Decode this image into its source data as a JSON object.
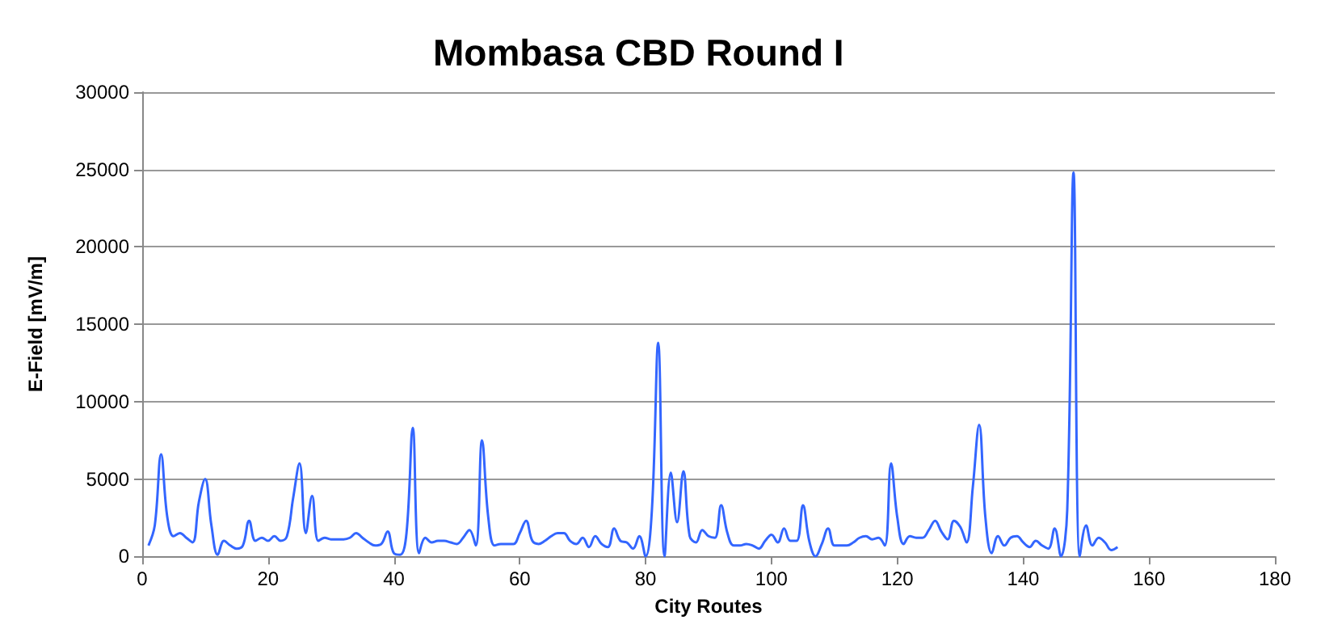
{
  "chart_data": {
    "type": "line",
    "title": "Mombasa CBD Round I",
    "xlabel": "City Routes",
    "ylabel": "E-Field [mV/m]",
    "x": [
      1,
      2,
      3,
      4,
      5,
      6,
      7,
      8,
      9,
      10,
      11,
      12,
      13,
      14,
      15,
      16,
      17,
      18,
      19,
      20,
      21,
      22,
      23,
      24,
      25,
      26,
      27,
      28,
      29,
      30,
      31,
      32,
      33,
      34,
      35,
      36,
      37,
      38,
      39,
      40,
      41,
      42,
      43,
      44,
      45,
      46,
      47,
      48,
      49,
      50,
      51,
      52,
      53,
      54,
      55,
      56,
      57,
      58,
      59,
      60,
      61,
      62,
      63,
      64,
      65,
      66,
      67,
      68,
      69,
      70,
      71,
      72,
      73,
      74,
      75,
      76,
      77,
      78,
      79,
      80,
      81,
      82,
      83,
      84,
      85,
      86,
      87,
      88,
      89,
      90,
      91,
      92,
      93,
      94,
      95,
      96,
      97,
      98,
      99,
      100,
      101,
      102,
      103,
      104,
      105,
      106,
      107,
      108,
      109,
      110,
      111,
      112,
      113,
      114,
      115,
      116,
      117,
      118,
      119,
      120,
      121,
      122,
      123,
      124,
      125,
      126,
      127,
      128,
      129,
      130,
      131,
      132,
      133,
      134,
      135,
      136,
      137,
      138,
      139,
      140,
      141,
      142,
      143,
      144,
      145,
      146,
      147,
      148,
      149,
      150,
      151,
      152,
      153,
      154,
      155
    ],
    "series": [
      {
        "color": "#3366ff",
        "values": [
          700,
          2000,
          6600,
          2500,
          1300,
          1500,
          1200,
          900,
          3500,
          5000,
          2000,
          100,
          1000,
          700,
          500,
          700,
          2300,
          1000,
          1200,
          1000,
          1300,
          1000,
          1300,
          3800,
          6000,
          1500,
          3900,
          1000,
          1200,
          1100,
          1100,
          1100,
          1200,
          1500,
          1200,
          900,
          700,
          800,
          1600,
          200,
          100,
          1500,
          8300,
          200,
          1200,
          900,
          1000,
          1000,
          900,
          800,
          1200,
          1700,
          700,
          7500,
          2500,
          700,
          800,
          800,
          800,
          1500,
          2300,
          1000,
          800,
          1000,
          1300,
          1500,
          1500,
          1000,
          800,
          1200,
          600,
          1300,
          800,
          600,
          1800,
          1000,
          900,
          500,
          1300,
          0,
          3000,
          13800,
          0,
          5400,
          2200,
          5500,
          1300,
          900,
          1700,
          1300,
          1200,
          3300,
          1500,
          700,
          700,
          800,
          700,
          500,
          1000,
          1400,
          900,
          1800,
          1000,
          1000,
          3300,
          1000,
          0,
          800,
          1800,
          700,
          700,
          700,
          900,
          1200,
          1300,
          1100,
          1200,
          700,
          6000,
          2500,
          800,
          1300,
          1200,
          1200,
          1700,
          2300,
          1600,
          1100,
          2300,
          1900,
          900,
          4500,
          8500,
          2500,
          200,
          1300,
          700,
          1200,
          1300,
          900,
          600,
          1000,
          700,
          500,
          1800,
          0,
          3000,
          24800,
          0,
          2000,
          700,
          1200,
          900,
          400,
          600
        ]
      }
    ],
    "xlim": [
      0,
      180
    ],
    "xticks": [
      0,
      20,
      40,
      60,
      80,
      100,
      120,
      140,
      160,
      180
    ],
    "ylim": [
      0,
      30000
    ],
    "yticks": [
      0,
      5000,
      10000,
      15000,
      20000,
      25000,
      30000
    ],
    "grid": "y",
    "marker": "none",
    "line_style": "solid"
  }
}
